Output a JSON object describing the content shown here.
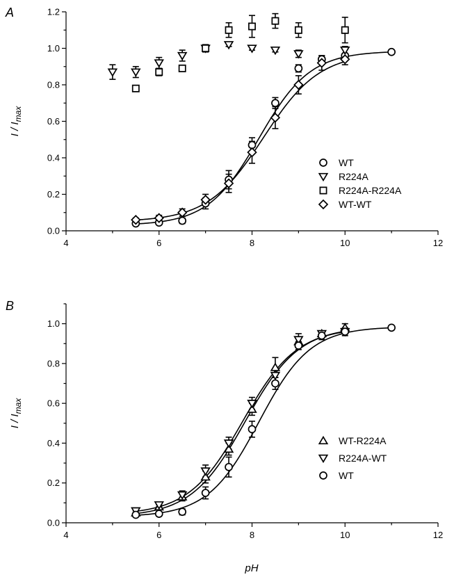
{
  "figure": {
    "xlabel": "pH"
  },
  "chart_data": [
    {
      "panel_label": "A",
      "type": "scatter",
      "ylabel_main": "I / I",
      "ylabel_sub": "max",
      "xlim": [
        4,
        12
      ],
      "ylim": [
        0,
        1.2
      ],
      "x_ticks": [
        4,
        6,
        8,
        10,
        12
      ],
      "y_ticks": [
        0.0,
        0.2,
        0.4,
        0.6,
        0.8,
        1.0,
        1.2
      ],
      "y_tick_labels": [
        "0.0",
        "0.2",
        "0.4",
        "0.6",
        "0.8",
        "1.0",
        "1.2"
      ],
      "legend_position": "right",
      "series": [
        {
          "name": "WT",
          "marker": "circle",
          "points": [
            {
              "x": 5.5,
              "y": 0.04,
              "err": 0.01
            },
            {
              "x": 6.0,
              "y": 0.045,
              "err": 0.01
            },
            {
              "x": 6.5,
              "y": 0.055,
              "err": 0.015
            },
            {
              "x": 7.0,
              "y": 0.15,
              "err": 0.03
            },
            {
              "x": 7.5,
              "y": 0.28,
              "err": 0.05
            },
            {
              "x": 8.0,
              "y": 0.47,
              "err": 0.04
            },
            {
              "x": 8.5,
              "y": 0.7,
              "err": 0.03
            },
            {
              "x": 9.0,
              "y": 0.89,
              "err": 0.02
            },
            {
              "x": 9.5,
              "y": 0.94,
              "err": 0.02
            },
            {
              "x": 10.0,
              "y": 0.96,
              "err": 0.01
            },
            {
              "x": 11.0,
              "y": 0.98,
              "err": 0.01
            }
          ],
          "fit": {
            "pKa": 8.15,
            "slope": 0.55,
            "bottom": 0.03,
            "top": 0.985
          }
        },
        {
          "name": "R224A",
          "marker": "triangle-down",
          "points": [
            {
              "x": 5.0,
              "y": 0.87,
              "err": 0.04
            },
            {
              "x": 5.5,
              "y": 0.87,
              "err": 0.03
            },
            {
              "x": 6.0,
              "y": 0.92,
              "err": 0.03
            },
            {
              "x": 6.5,
              "y": 0.96,
              "err": 0.03
            },
            {
              "x": 7.0,
              "y": 1.0,
              "err": 0.02
            },
            {
              "x": 7.5,
              "y": 1.02,
              "err": 0.01
            },
            {
              "x": 8.0,
              "y": 1.0,
              "err": 0.01
            },
            {
              "x": 8.5,
              "y": 0.99,
              "err": 0.01
            },
            {
              "x": 9.0,
              "y": 0.97,
              "err": 0.02
            },
            {
              "x": 10.0,
              "y": 0.99,
              "err": 0.02
            }
          ]
        },
        {
          "name": "R224A-R224A",
          "marker": "square",
          "points": [
            {
              "x": 5.5,
              "y": 0.78,
              "err": 0.01
            },
            {
              "x": 6.0,
              "y": 0.87,
              "err": 0.02
            },
            {
              "x": 6.5,
              "y": 0.89,
              "err": 0.01
            },
            {
              "x": 7.0,
              "y": 1.0,
              "err": 0.02
            },
            {
              "x": 7.5,
              "y": 1.1,
              "err": 0.04
            },
            {
              "x": 8.0,
              "y": 1.12,
              "err": 0.06
            },
            {
              "x": 8.5,
              "y": 1.15,
              "err": 0.04
            },
            {
              "x": 9.0,
              "y": 1.1,
              "err": 0.04
            },
            {
              "x": 10.0,
              "y": 1.1,
              "err": 0.07
            }
          ]
        },
        {
          "name": "WT-WT",
          "marker": "diamond",
          "points": [
            {
              "x": 5.5,
              "y": 0.06,
              "err": 0.01
            },
            {
              "x": 6.0,
              "y": 0.07,
              "err": 0.015
            },
            {
              "x": 6.5,
              "y": 0.1,
              "err": 0.02
            },
            {
              "x": 7.0,
              "y": 0.17,
              "err": 0.03
            },
            {
              "x": 7.5,
              "y": 0.26,
              "err": 0.05
            },
            {
              "x": 8.0,
              "y": 0.43,
              "err": 0.06
            },
            {
              "x": 8.5,
              "y": 0.62,
              "err": 0.06
            },
            {
              "x": 9.0,
              "y": 0.8,
              "err": 0.05
            },
            {
              "x": 9.5,
              "y": 0.92,
              "err": 0.04
            },
            {
              "x": 10.0,
              "y": 0.94,
              "err": 0.03
            }
          ],
          "fit": {
            "pKa": 8.25,
            "slope": 0.6,
            "bottom": 0.05,
            "top": 0.975
          }
        }
      ]
    },
    {
      "panel_label": "B",
      "type": "scatter",
      "ylabel_main": "I / I",
      "ylabel_sub": "max",
      "xlim": [
        4,
        12
      ],
      "ylim": [
        0,
        1.1
      ],
      "x_ticks": [
        4,
        6,
        8,
        10,
        12
      ],
      "y_ticks": [
        0.0,
        0.2,
        0.4,
        0.6,
        0.8,
        1.0
      ],
      "y_tick_labels": [
        "0.0",
        "0.2",
        "0.4",
        "0.6",
        "0.8",
        "1.0"
      ],
      "legend_position": "right",
      "series": [
        {
          "name": "WT-R224A",
          "marker": "triangle-up",
          "points": [
            {
              "x": 5.5,
              "y": 0.05,
              "err": 0.01
            },
            {
              "x": 6.0,
              "y": 0.08,
              "err": 0.01
            },
            {
              "x": 6.5,
              "y": 0.13,
              "err": 0.02
            },
            {
              "x": 7.0,
              "y": 0.23,
              "err": 0.03
            },
            {
              "x": 7.5,
              "y": 0.37,
              "err": 0.03
            },
            {
              "x": 8.0,
              "y": 0.57,
              "err": 0.03
            },
            {
              "x": 8.5,
              "y": 0.78,
              "err": 0.05
            },
            {
              "x": 9.0,
              "y": 0.91,
              "err": 0.02
            },
            {
              "x": 9.5,
              "y": 0.95,
              "err": 0.01
            },
            {
              "x": 10.0,
              "y": 0.98,
              "err": 0.02
            }
          ],
          "fit": {
            "pKa": 7.85,
            "slope": 0.58,
            "bottom": 0.03,
            "top": 0.985
          }
        },
        {
          "name": "R224A-WT",
          "marker": "triangle-down",
          "points": [
            {
              "x": 5.5,
              "y": 0.06,
              "err": 0.01
            },
            {
              "x": 6.0,
              "y": 0.09,
              "err": 0.01
            },
            {
              "x": 6.5,
              "y": 0.14,
              "err": 0.02
            },
            {
              "x": 7.0,
              "y": 0.26,
              "err": 0.03
            },
            {
              "x": 7.5,
              "y": 0.4,
              "err": 0.03
            },
            {
              "x": 8.0,
              "y": 0.6,
              "err": 0.03
            },
            {
              "x": 8.5,
              "y": 0.74,
              "err": 0.03
            },
            {
              "x": 9.0,
              "y": 0.92,
              "err": 0.03
            },
            {
              "x": 9.5,
              "y": 0.95,
              "err": 0.01
            },
            {
              "x": 10.0,
              "y": 0.96,
              "err": 0.02
            }
          ],
          "fit": {
            "pKa": 7.8,
            "slope": 0.58,
            "bottom": 0.04,
            "top": 0.98
          }
        },
        {
          "name": "WT",
          "marker": "circle",
          "points": [
            {
              "x": 5.5,
              "y": 0.04,
              "err": 0.01
            },
            {
              "x": 6.0,
              "y": 0.045,
              "err": 0.01
            },
            {
              "x": 6.5,
              "y": 0.055,
              "err": 0.015
            },
            {
              "x": 7.0,
              "y": 0.15,
              "err": 0.03
            },
            {
              "x": 7.5,
              "y": 0.28,
              "err": 0.05
            },
            {
              "x": 8.0,
              "y": 0.47,
              "err": 0.04
            },
            {
              "x": 8.5,
              "y": 0.7,
              "err": 0.03
            },
            {
              "x": 9.0,
              "y": 0.89,
              "err": 0.02
            },
            {
              "x": 9.5,
              "y": 0.94,
              "err": 0.02
            },
            {
              "x": 10.0,
              "y": 0.96,
              "err": 0.01
            },
            {
              "x": 11.0,
              "y": 0.98,
              "err": 0.01
            }
          ],
          "fit": {
            "pKa": 8.15,
            "slope": 0.55,
            "bottom": 0.03,
            "top": 0.985
          }
        }
      ]
    }
  ]
}
